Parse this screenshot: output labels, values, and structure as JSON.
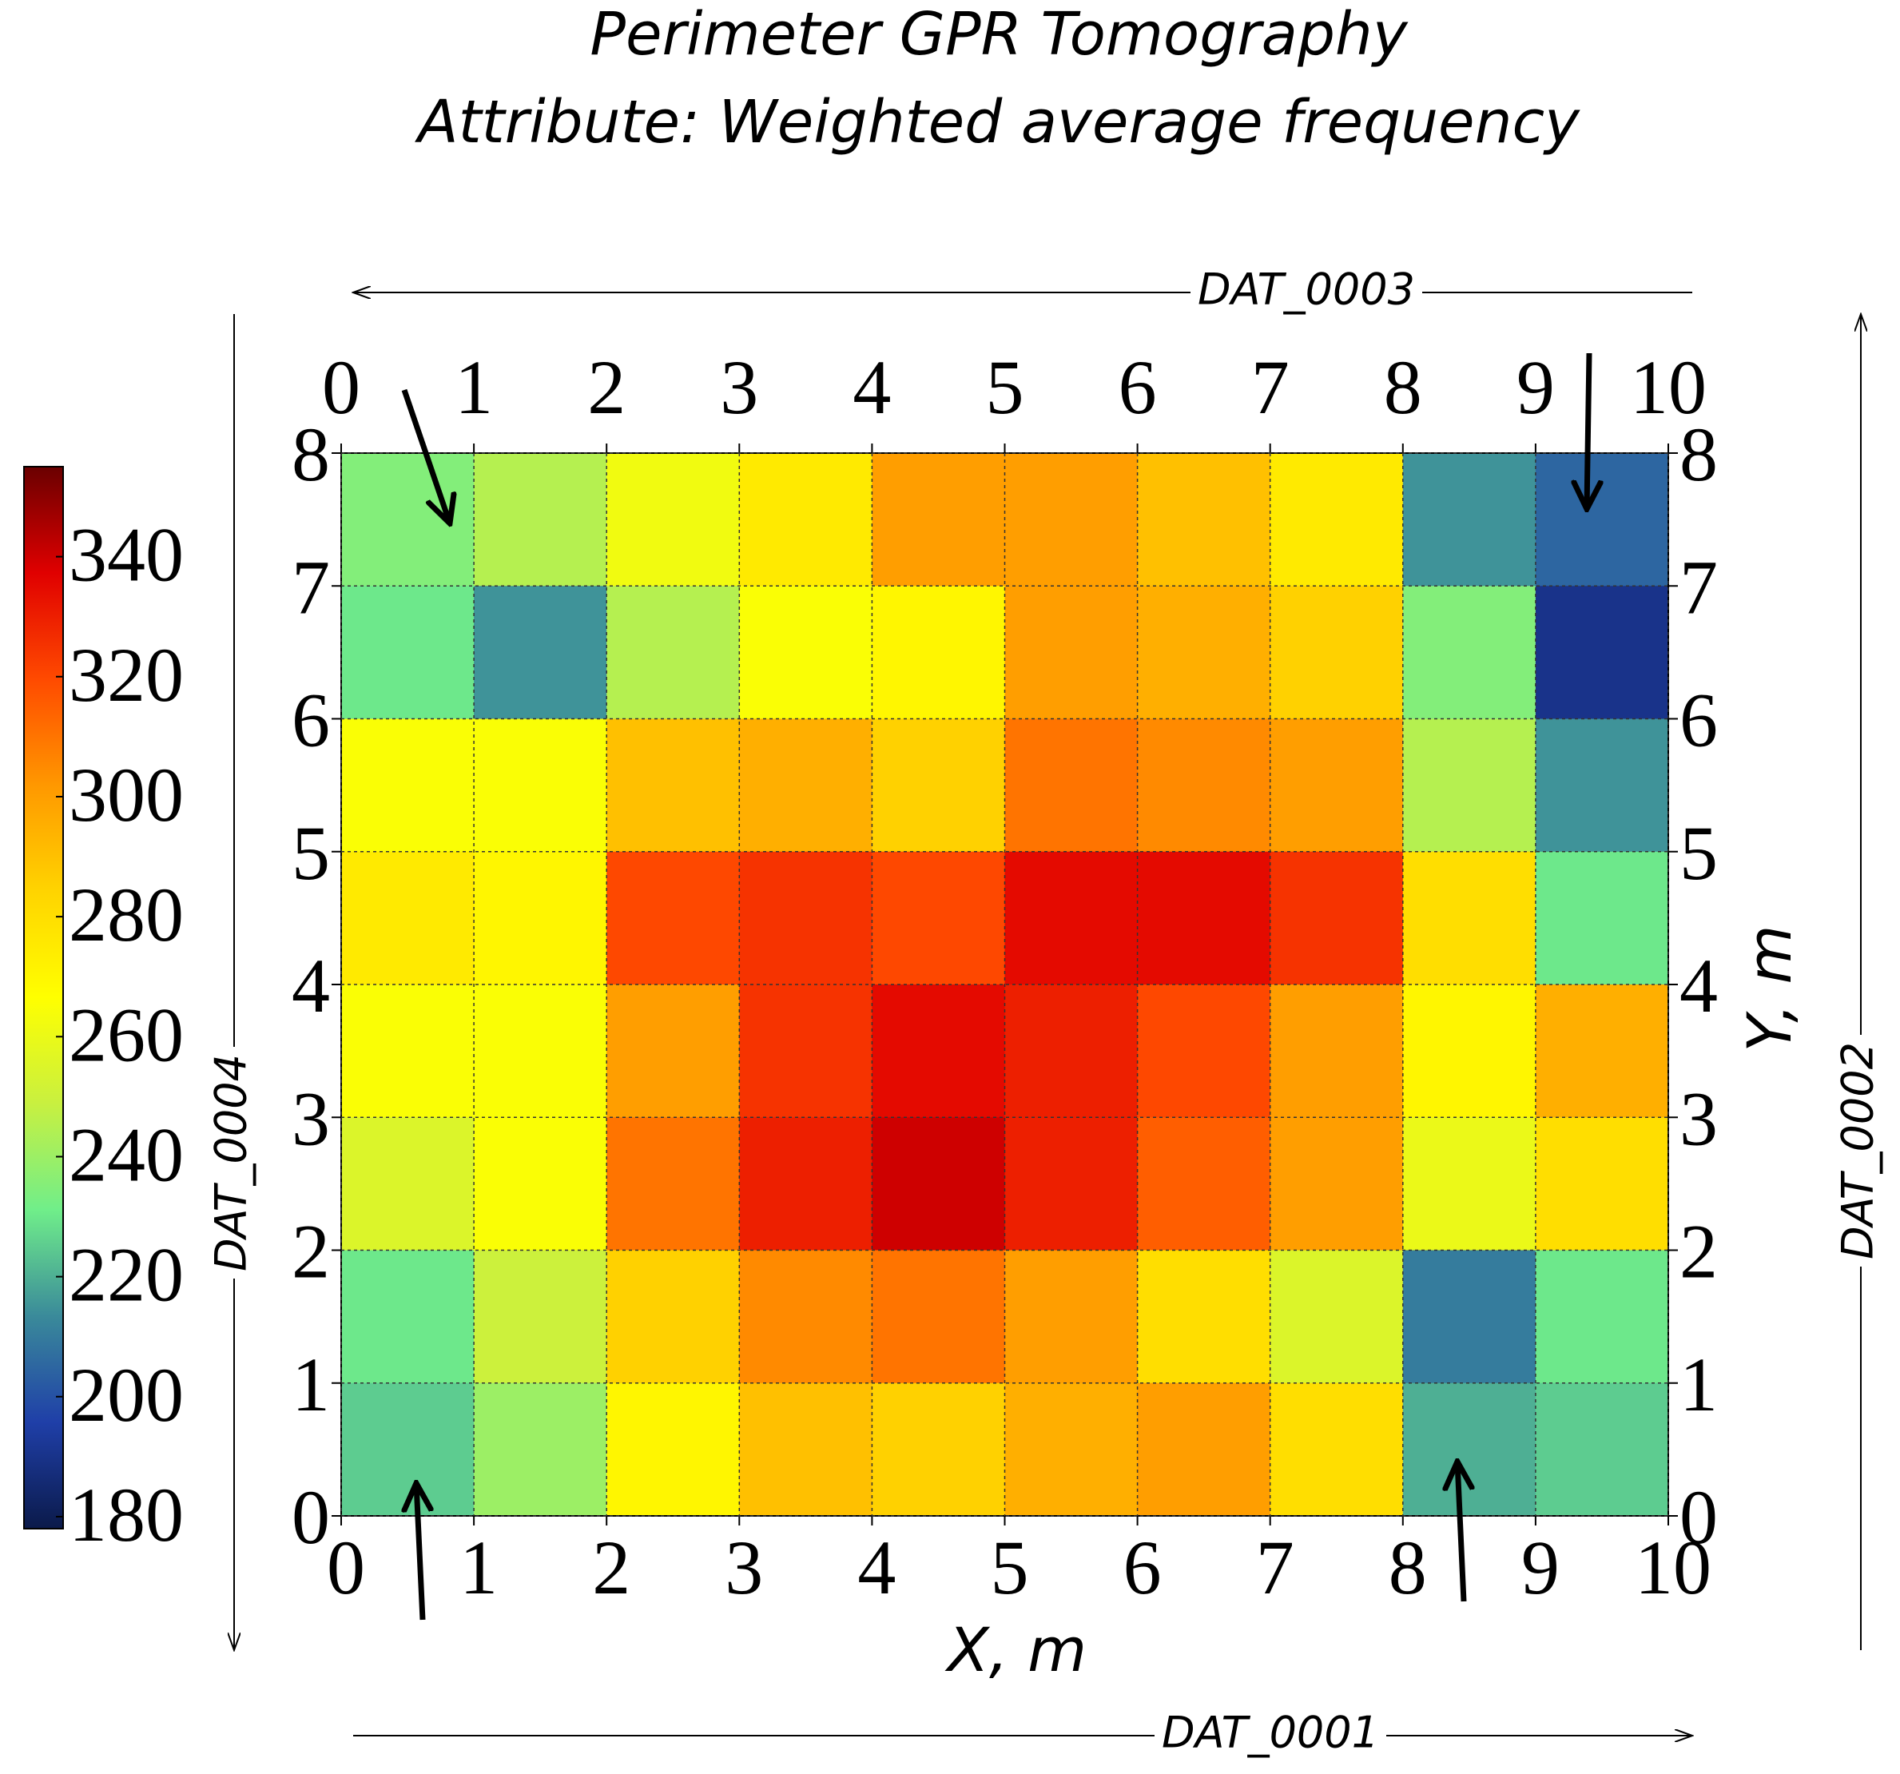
{
  "chart_data": {
    "type": "heatmap",
    "title": [
      "Perimeter GPR Tomography",
      "Attribute: Weighted average frequency"
    ],
    "x_label": "X, m",
    "y_label": "Y, m",
    "profiles": {
      "top": "DAT_0003",
      "bottom": "DAT_0001",
      "left": "DAT_0004",
      "right": "DAT_0002"
    },
    "xlim": [
      0,
      10
    ],
    "ylim": [
      0,
      8
    ],
    "xticks": [
      0,
      1,
      2,
      3,
      4,
      5,
      6,
      7,
      8,
      9,
      10
    ],
    "yticks": [
      0,
      1,
      2,
      3,
      4,
      5,
      6,
      7,
      8
    ],
    "grid": true,
    "z": [
      [
        235,
        245,
        262,
        275,
        300,
        300,
        290,
        275,
        215,
        205
      ],
      [
        230,
        215,
        245,
        265,
        270,
        300,
        295,
        285,
        235,
        190
      ],
      [
        265,
        265,
        290,
        295,
        285,
        310,
        305,
        300,
        245,
        215
      ],
      [
        275,
        270,
        320,
        325,
        320,
        335,
        335,
        325,
        280,
        230
      ],
      [
        265,
        265,
        300,
        325,
        335,
        330,
        320,
        300,
        270,
        295
      ],
      [
        255,
        265,
        310,
        330,
        340,
        330,
        315,
        300,
        260,
        280
      ],
      [
        230,
        250,
        285,
        305,
        310,
        300,
        280,
        255,
        210,
        230
      ],
      [
        225,
        240,
        270,
        290,
        285,
        295,
        300,
        280,
        220,
        225
      ]
    ],
    "zlim": [
      178,
      355
    ],
    "zticks": [
      180,
      200,
      220,
      240,
      260,
      280,
      300,
      320,
      340
    ],
    "colormap": [
      "#0b1a4a",
      "#1f3fa8",
      "#3a8a9a",
      "#70ee8a",
      "#c8f040",
      "#ffff00",
      "#ffd400",
      "#ff9800",
      "#ff4a00",
      "#e00000",
      "#6a0000"
    ]
  }
}
